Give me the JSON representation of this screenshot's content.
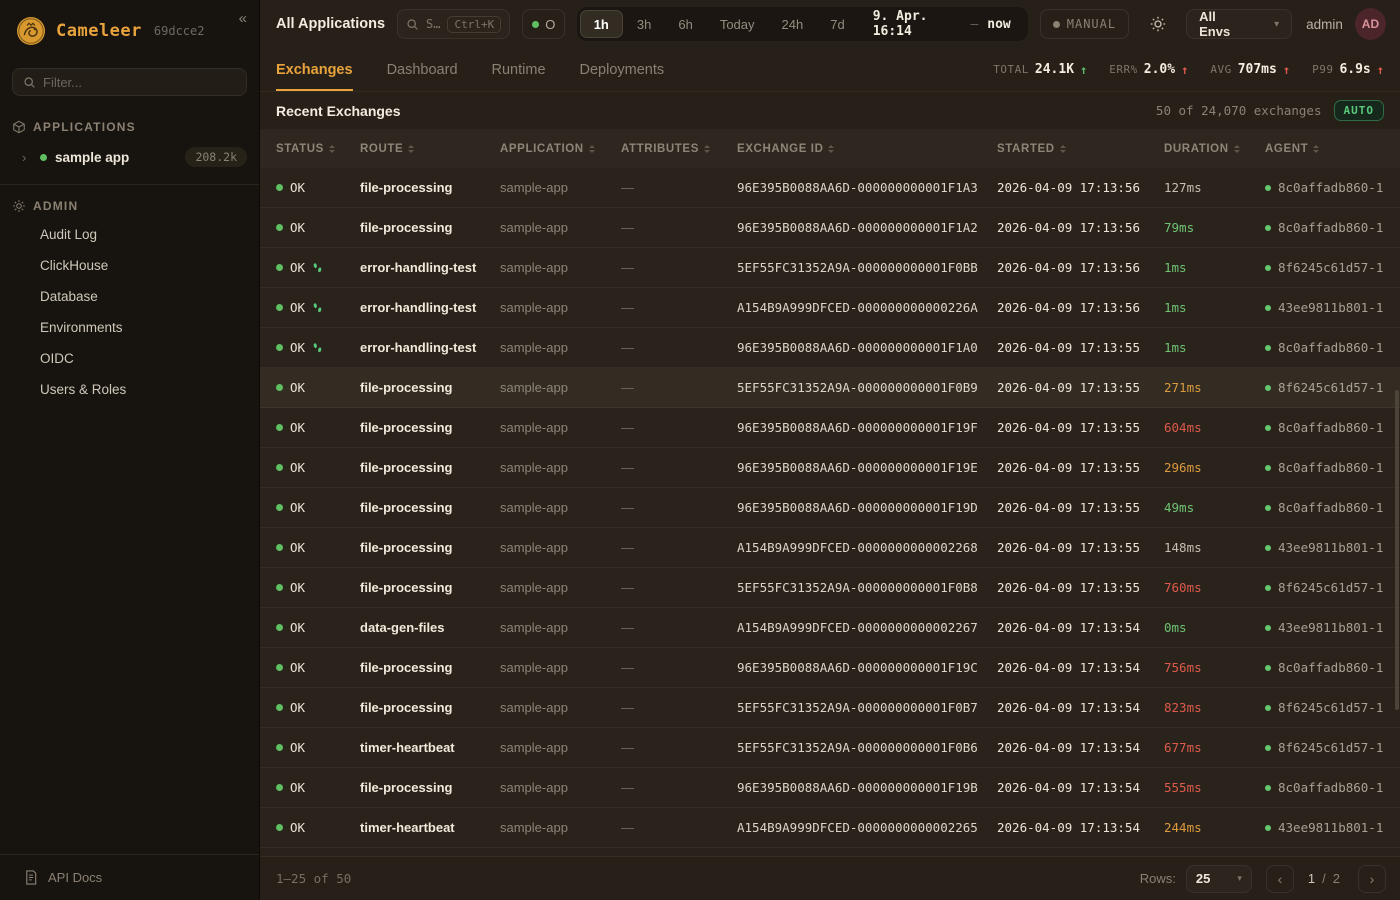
{
  "colors": {
    "accent": "#e8a33d",
    "green": "#5fbf62",
    "red": "#de5a4a",
    "orange": "#dd9a3e",
    "auto_badge": "#58c97a",
    "avatar_bg": "#4b252a"
  },
  "sidebar": {
    "logo_text": "Cameleer",
    "version": "69dcce2",
    "collapse_icon": "«",
    "filter_placeholder": "Filter...",
    "applications_label": "APPLICATIONS",
    "app": {
      "expand_icon": "›",
      "name": "sample app",
      "count": "208.2k"
    },
    "admin_label": "ADMIN",
    "admin_items": [
      "Audit Log",
      "ClickHouse",
      "Database",
      "Environments",
      "OIDC",
      "Users & Roles"
    ],
    "api_docs_label": "API Docs"
  },
  "topbar": {
    "title": "All Applications",
    "search": {
      "text": "S…",
      "shortcut": "Ctrl+K"
    },
    "live_label": "O",
    "time_ranges": [
      "1h",
      "3h",
      "6h",
      "Today",
      "24h",
      "7d"
    ],
    "active_range": "1h",
    "date_from": "9. Apr. 16:14",
    "date_sep": "—",
    "date_to": "now",
    "manual_label": "MANUAL",
    "env_label": "All Envs",
    "env_caret": "▾",
    "username": "admin",
    "avatar_initials": "AD"
  },
  "tabs": {
    "items": [
      "Exchanges",
      "Dashboard",
      "Runtime",
      "Deployments"
    ],
    "active": "Exchanges"
  },
  "stats": [
    {
      "label": "TOTAL",
      "value": "24.1K",
      "arrow": "↑",
      "arrow_color": "green"
    },
    {
      "label": "ERR%",
      "value": "2.0%",
      "arrow": "↑",
      "arrow_color": "red"
    },
    {
      "label": "AVG",
      "value": "707ms",
      "arrow": "↑",
      "arrow_color": "red"
    },
    {
      "label": "P99",
      "value": "6.9s",
      "arrow": "↑",
      "arrow_color": "red"
    }
  ],
  "table": {
    "title": "Recent Exchanges",
    "summary": "50 of 24,070 exchanges",
    "auto_badge": "AUTO",
    "columns": [
      "STATUS",
      "ROUTE",
      "APPLICATION",
      "ATTRIBUTES",
      "EXCHANGE ID",
      "STARTED",
      "DURATION",
      "AGENT"
    ],
    "rows": [
      {
        "status": "OK",
        "trace": false,
        "route": "file-processing",
        "application": "sample-app",
        "attributes": "—",
        "exchange_id": "96E395B0088AA6D-000000000001F1A3",
        "started": "2026-04-09 17:13:56",
        "duration": "127ms",
        "duration_color": "gray",
        "agent": "8c0affadb860-1",
        "highlighted": false
      },
      {
        "status": "OK",
        "trace": false,
        "route": "file-processing",
        "application": "sample-app",
        "attributes": "—",
        "exchange_id": "96E395B0088AA6D-000000000001F1A2",
        "started": "2026-04-09 17:13:56",
        "duration": "79ms",
        "duration_color": "green",
        "agent": "8c0affadb860-1",
        "highlighted": false
      },
      {
        "status": "OK",
        "trace": true,
        "route": "error-handling-test",
        "application": "sample-app",
        "attributes": "—",
        "exchange_id": "5EF55FC31352A9A-000000000001F0BB",
        "started": "2026-04-09 17:13:56",
        "duration": "1ms",
        "duration_color": "green",
        "agent": "8f6245c61d57-1",
        "highlighted": false
      },
      {
        "status": "OK",
        "trace": true,
        "route": "error-handling-test",
        "application": "sample-app",
        "attributes": "—",
        "exchange_id": "A154B9A999DFCED-000000000000226A",
        "started": "2026-04-09 17:13:56",
        "duration": "1ms",
        "duration_color": "green",
        "agent": "43ee9811b801-1",
        "highlighted": false
      },
      {
        "status": "OK",
        "trace": true,
        "route": "error-handling-test",
        "application": "sample-app",
        "attributes": "—",
        "exchange_id": "96E395B0088AA6D-000000000001F1A0",
        "started": "2026-04-09 17:13:55",
        "duration": "1ms",
        "duration_color": "green",
        "agent": "8c0affadb860-1",
        "highlighted": false
      },
      {
        "status": "OK",
        "trace": false,
        "route": "file-processing",
        "application": "sample-app",
        "attributes": "—",
        "exchange_id": "5EF55FC31352A9A-000000000001F0B9",
        "started": "2026-04-09 17:13:55",
        "duration": "271ms",
        "duration_color": "orange",
        "agent": "8f6245c61d57-1",
        "highlighted": true
      },
      {
        "status": "OK",
        "trace": false,
        "route": "file-processing",
        "application": "sample-app",
        "attributes": "—",
        "exchange_id": "96E395B0088AA6D-000000000001F19F",
        "started": "2026-04-09 17:13:55",
        "duration": "604ms",
        "duration_color": "red",
        "agent": "8c0affadb860-1",
        "highlighted": false
      },
      {
        "status": "OK",
        "trace": false,
        "route": "file-processing",
        "application": "sample-app",
        "attributes": "—",
        "exchange_id": "96E395B0088AA6D-000000000001F19E",
        "started": "2026-04-09 17:13:55",
        "duration": "296ms",
        "duration_color": "orange",
        "agent": "8c0affadb860-1",
        "highlighted": false
      },
      {
        "status": "OK",
        "trace": false,
        "route": "file-processing",
        "application": "sample-app",
        "attributes": "—",
        "exchange_id": "96E395B0088AA6D-000000000001F19D",
        "started": "2026-04-09 17:13:55",
        "duration": "49ms",
        "duration_color": "green",
        "agent": "8c0affadb860-1",
        "highlighted": false
      },
      {
        "status": "OK",
        "trace": false,
        "route": "file-processing",
        "application": "sample-app",
        "attributes": "—",
        "exchange_id": "A154B9A999DFCED-0000000000002268",
        "started": "2026-04-09 17:13:55",
        "duration": "148ms",
        "duration_color": "gray",
        "agent": "43ee9811b801-1",
        "highlighted": false
      },
      {
        "status": "OK",
        "trace": false,
        "route": "file-processing",
        "application": "sample-app",
        "attributes": "—",
        "exchange_id": "5EF55FC31352A9A-000000000001F0B8",
        "started": "2026-04-09 17:13:55",
        "duration": "760ms",
        "duration_color": "red",
        "agent": "8f6245c61d57-1",
        "highlighted": false
      },
      {
        "status": "OK",
        "trace": false,
        "route": "data-gen-files",
        "application": "sample-app",
        "attributes": "—",
        "exchange_id": "A154B9A999DFCED-0000000000002267",
        "started": "2026-04-09 17:13:54",
        "duration": "0ms",
        "duration_color": "green",
        "agent": "43ee9811b801-1",
        "highlighted": false
      },
      {
        "status": "OK",
        "trace": false,
        "route": "file-processing",
        "application": "sample-app",
        "attributes": "—",
        "exchange_id": "96E395B0088AA6D-000000000001F19C",
        "started": "2026-04-09 17:13:54",
        "duration": "756ms",
        "duration_color": "red",
        "agent": "8c0affadb860-1",
        "highlighted": false
      },
      {
        "status": "OK",
        "trace": false,
        "route": "file-processing",
        "application": "sample-app",
        "attributes": "—",
        "exchange_id": "5EF55FC31352A9A-000000000001F0B7",
        "started": "2026-04-09 17:13:54",
        "duration": "823ms",
        "duration_color": "red",
        "agent": "8f6245c61d57-1",
        "highlighted": false
      },
      {
        "status": "OK",
        "trace": false,
        "route": "timer-heartbeat",
        "application": "sample-app",
        "attributes": "—",
        "exchange_id": "5EF55FC31352A9A-000000000001F0B6",
        "started": "2026-04-09 17:13:54",
        "duration": "677ms",
        "duration_color": "red",
        "agent": "8f6245c61d57-1",
        "highlighted": false
      },
      {
        "status": "OK",
        "trace": false,
        "route": "file-processing",
        "application": "sample-app",
        "attributes": "—",
        "exchange_id": "96E395B0088AA6D-000000000001F19B",
        "started": "2026-04-09 17:13:54",
        "duration": "555ms",
        "duration_color": "red",
        "agent": "8c0affadb860-1",
        "highlighted": false
      },
      {
        "status": "OK",
        "trace": false,
        "route": "timer-heartbeat",
        "application": "sample-app",
        "attributes": "—",
        "exchange_id": "A154B9A999DFCED-0000000000002265",
        "started": "2026-04-09 17:13:54",
        "duration": "244ms",
        "duration_color": "orange",
        "agent": "43ee9811b801-1",
        "highlighted": false
      }
    ]
  },
  "footer": {
    "range_text": "1–25 of 50",
    "rows_label": "Rows:",
    "rows_value": "25",
    "rows_caret": "▾",
    "prev_icon": "‹",
    "next_icon": "›",
    "page_current": "1",
    "page_sep": "/",
    "page_total": "2"
  }
}
